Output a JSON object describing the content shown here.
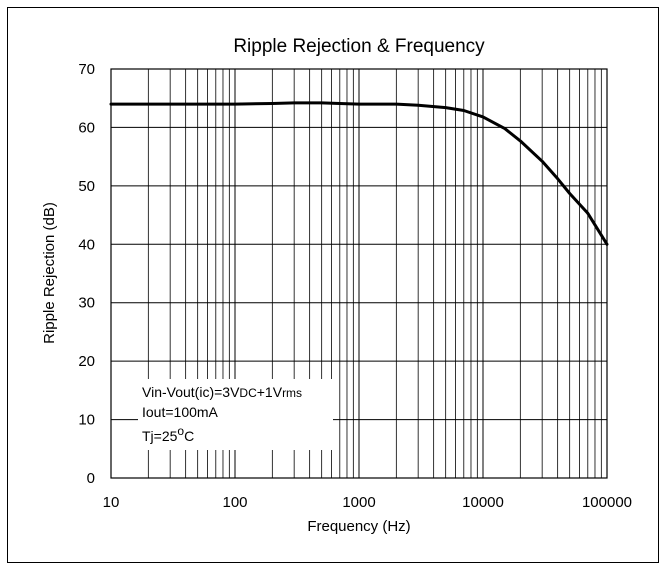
{
  "chart_data": {
    "type": "line",
    "title": "Ripple Rejection & Frequency",
    "xlabel": "Frequency (Hz)",
    "ylabel": "Ripple Rejection (dB)",
    "x_scale": "log",
    "xlim": [
      10,
      100000
    ],
    "ylim": [
      0,
      70
    ],
    "x_ticks": [
      "10",
      "100",
      "1000",
      "10000",
      "100000"
    ],
    "y_ticks": [
      "0",
      "10",
      "20",
      "30",
      "40",
      "50",
      "60",
      "70"
    ],
    "grid": true,
    "series": [
      {
        "x": [
          10,
          20,
          50,
          100,
          200,
          300,
          500,
          700,
          1000,
          2000,
          3000,
          5000,
          7000,
          10000,
          15000,
          20000,
          30000,
          40000,
          50000,
          70000,
          100000
        ],
        "y": [
          64,
          64,
          64,
          64,
          64.1,
          64.2,
          64.2,
          64.1,
          64,
          64,
          63.8,
          63.4,
          62.9,
          61.8,
          59.8,
          57.7,
          54.2,
          51.2,
          48.7,
          45.3,
          40
        ]
      }
    ],
    "annotations": {
      "line1_a": "Vin-Vout(ic)=3V",
      "line1_sub1": "DC",
      "line1_b": "+1V",
      "line1_sub2": "rms",
      "line2": "Iout=100mA",
      "line3_a": "Tj=25",
      "line3_sup": "o",
      "line3_b": "C"
    },
    "colors": {
      "line": "#000000",
      "grid": "#000000",
      "background": "#ffffff"
    }
  }
}
